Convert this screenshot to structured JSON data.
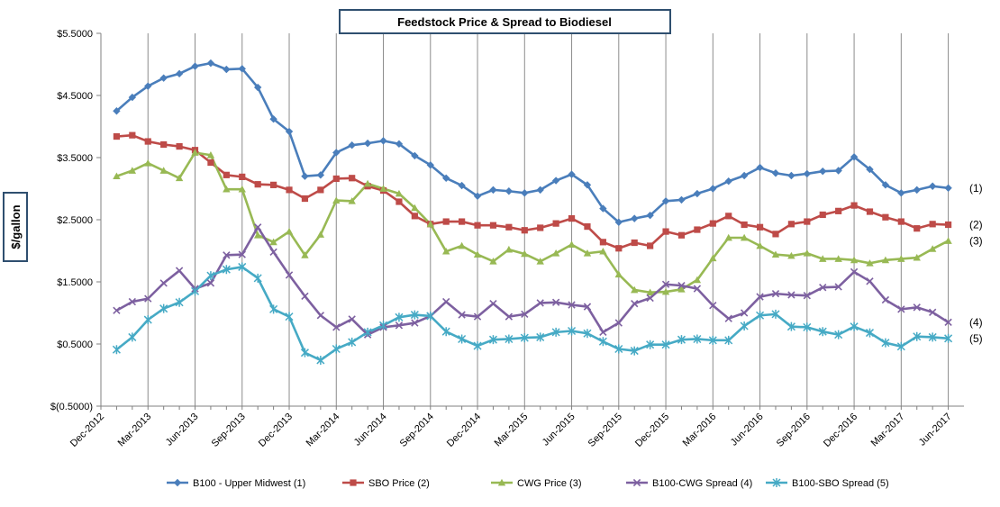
{
  "chart_data": {
    "type": "line",
    "title": "Feedstock Price & Spread to Biodiesel",
    "ylabel": "$/gallon",
    "xlabel": "",
    "ylim": [
      -0.5,
      5.5
    ],
    "y_ticks": [
      -0.5,
      0.5,
      1.5,
      2.5,
      3.5,
      4.5,
      5.5
    ],
    "y_tick_labels": [
      "$(0.5000)",
      "$0.5000",
      "$1.5000",
      "$2.5000",
      "$3.5000",
      "$4.5000",
      "$5.5000"
    ],
    "x_tick_labels": [
      "Dec-2012",
      "Mar-2013",
      "Jun-2013",
      "Sep-2013",
      "Dec-2013",
      "Mar-2014",
      "Jun-2014",
      "Sep-2014",
      "Dec-2014",
      "Mar-2015",
      "Jun-2015",
      "Sep-2015",
      "Dec-2015",
      "Mar-2016",
      "Jun-2016",
      "Sep-2016",
      "Dec-2016",
      "Mar-2017",
      "Jun-2017"
    ],
    "x": [
      "Jan-2013",
      "Feb-2013",
      "Mar-2013",
      "Apr-2013",
      "May-2013",
      "Jun-2013",
      "Jul-2013",
      "Aug-2013",
      "Sep-2013",
      "Oct-2013",
      "Nov-2013",
      "Dec-2013",
      "Jan-2014",
      "Feb-2014",
      "Mar-2014",
      "Apr-2014",
      "May-2014",
      "Jun-2014",
      "Jul-2014",
      "Aug-2014",
      "Sep-2014",
      "Oct-2014",
      "Nov-2014",
      "Dec-2014",
      "Jan-2015",
      "Feb-2015",
      "Mar-2015",
      "Apr-2015",
      "May-2015",
      "Jun-2015",
      "Jul-2015",
      "Aug-2015",
      "Sep-2015",
      "Oct-2015",
      "Nov-2015",
      "Dec-2015",
      "Jan-2016",
      "Feb-2016",
      "Mar-2016",
      "Apr-2016",
      "May-2016",
      "Jun-2016",
      "Jul-2016",
      "Aug-2016",
      "Sep-2016",
      "Oct-2016",
      "Nov-2016",
      "Dec-2016",
      "Jan-2017",
      "Feb-2017",
      "Mar-2017",
      "Apr-2017",
      "May-2017",
      "Jun-2017"
    ],
    "grid": "vertical",
    "legend_position": "bottom",
    "series": [
      {
        "name": "B100 - Upper Midwest (1)",
        "end_label": "(1)",
        "color": "#4A7EBB",
        "marker": "diamond",
        "values": [
          4.25,
          4.47,
          4.65,
          4.78,
          4.85,
          4.97,
          5.02,
          4.92,
          4.93,
          4.63,
          4.12,
          3.92,
          3.2,
          3.22,
          3.58,
          3.7,
          3.73,
          3.77,
          3.72,
          3.53,
          3.38,
          3.17,
          3.05,
          2.88,
          2.98,
          2.96,
          2.93,
          2.98,
          3.13,
          3.23,
          3.06,
          2.68,
          2.46,
          2.52,
          2.57,
          2.8,
          2.82,
          2.92,
          3.0,
          3.12,
          3.21,
          3.34,
          3.25,
          3.21,
          3.24,
          3.28,
          3.29,
          3.51,
          3.31,
          3.06,
          2.93,
          2.98,
          3.04,
          3.01
        ]
      },
      {
        "name": "SBO Price (2)",
        "end_label": "(2)",
        "color": "#BE4B48",
        "marker": "square",
        "values": [
          3.84,
          3.86,
          3.76,
          3.71,
          3.68,
          3.62,
          3.42,
          3.22,
          3.19,
          3.07,
          3.06,
          2.98,
          2.84,
          2.98,
          3.16,
          3.17,
          3.04,
          2.97,
          2.79,
          2.56,
          2.43,
          2.47,
          2.47,
          2.41,
          2.41,
          2.38,
          2.33,
          2.37,
          2.44,
          2.52,
          2.39,
          2.14,
          2.04,
          2.13,
          2.08,
          2.31,
          2.25,
          2.34,
          2.44,
          2.56,
          2.42,
          2.38,
          2.27,
          2.43,
          2.47,
          2.58,
          2.64,
          2.73,
          2.63,
          2.54,
          2.47,
          2.36,
          2.43,
          2.42
        ]
      },
      {
        "name": "CWG Price (3)",
        "end_label": "(3)",
        "color": "#98B954",
        "marker": "triangle",
        "values": [
          3.2,
          3.29,
          3.41,
          3.29,
          3.17,
          3.58,
          3.54,
          2.99,
          2.99,
          2.25,
          2.14,
          2.31,
          1.93,
          2.26,
          2.81,
          2.8,
          3.08,
          3.0,
          2.92,
          2.69,
          2.43,
          1.99,
          2.08,
          1.94,
          1.83,
          2.02,
          1.95,
          1.83,
          1.96,
          2.1,
          1.96,
          1.99,
          1.62,
          1.37,
          1.33,
          1.34,
          1.38,
          1.53,
          1.88,
          2.21,
          2.21,
          2.08,
          1.94,
          1.92,
          1.96,
          1.87,
          1.87,
          1.85,
          1.8,
          1.85,
          1.87,
          1.89,
          2.03,
          2.16
        ]
      },
      {
        "name": "B100-CWG Spread (4)",
        "end_label": "(4)",
        "color": "#7D60A0",
        "marker": "x",
        "values": [
          1.04,
          1.18,
          1.23,
          1.48,
          1.68,
          1.39,
          1.48,
          1.93,
          1.94,
          2.38,
          1.98,
          1.61,
          1.27,
          0.96,
          0.77,
          0.9,
          0.65,
          0.77,
          0.8,
          0.84,
          0.95,
          1.18,
          0.97,
          0.94,
          1.15,
          0.94,
          0.98,
          1.16,
          1.17,
          1.13,
          1.1,
          0.69,
          0.84,
          1.15,
          1.24,
          1.46,
          1.44,
          1.39,
          1.12,
          0.91,
          1.0,
          1.26,
          1.31,
          1.29,
          1.28,
          1.41,
          1.42,
          1.66,
          1.51,
          1.21,
          1.06,
          1.09,
          1.01,
          0.85
        ]
      },
      {
        "name": "B100-SBO Spread (5)",
        "end_label": "(5)",
        "color": "#46AAC5",
        "marker": "asterisk",
        "values": [
          0.41,
          0.61,
          0.89,
          1.07,
          1.17,
          1.35,
          1.6,
          1.7,
          1.74,
          1.56,
          1.06,
          0.94,
          0.36,
          0.24,
          0.42,
          0.53,
          0.69,
          0.8,
          0.93,
          0.97,
          0.95,
          0.7,
          0.58,
          0.47,
          0.57,
          0.58,
          0.6,
          0.61,
          0.69,
          0.71,
          0.67,
          0.54,
          0.42,
          0.39,
          0.49,
          0.49,
          0.57,
          0.58,
          0.56,
          0.56,
          0.79,
          0.96,
          0.98,
          0.78,
          0.77,
          0.7,
          0.65,
          0.78,
          0.68,
          0.52,
          0.46,
          0.62,
          0.61,
          0.59
        ]
      }
    ]
  }
}
